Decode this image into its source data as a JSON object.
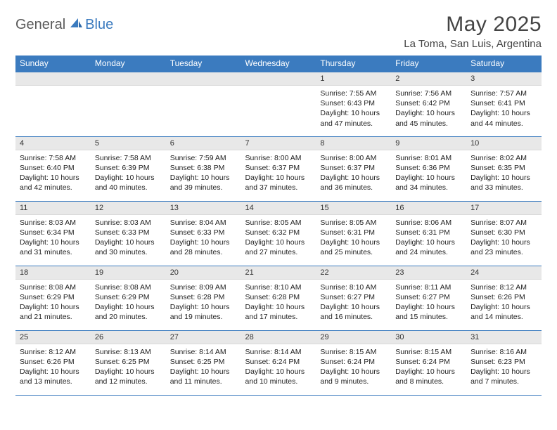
{
  "colors": {
    "accent": "#3b7bbf",
    "header_text": "#ffffff",
    "daynum_bg": "#e8e8e8",
    "text": "#222222",
    "logo_gray": "#5a5a5a"
  },
  "logo": {
    "part1": "General",
    "part2": "Blue"
  },
  "title": "May 2025",
  "location": "La Toma, San Luis, Argentina",
  "weekdays": [
    "Sunday",
    "Monday",
    "Tuesday",
    "Wednesday",
    "Thursday",
    "Friday",
    "Saturday"
  ],
  "weeks": [
    [
      null,
      null,
      null,
      null,
      {
        "n": "1",
        "sr": "7:55 AM",
        "ss": "6:43 PM",
        "dl": "10 hours and 47 minutes."
      },
      {
        "n": "2",
        "sr": "7:56 AM",
        "ss": "6:42 PM",
        "dl": "10 hours and 45 minutes."
      },
      {
        "n": "3",
        "sr": "7:57 AM",
        "ss": "6:41 PM",
        "dl": "10 hours and 44 minutes."
      }
    ],
    [
      {
        "n": "4",
        "sr": "7:58 AM",
        "ss": "6:40 PM",
        "dl": "10 hours and 42 minutes."
      },
      {
        "n": "5",
        "sr": "7:58 AM",
        "ss": "6:39 PM",
        "dl": "10 hours and 40 minutes."
      },
      {
        "n": "6",
        "sr": "7:59 AM",
        "ss": "6:38 PM",
        "dl": "10 hours and 39 minutes."
      },
      {
        "n": "7",
        "sr": "8:00 AM",
        "ss": "6:37 PM",
        "dl": "10 hours and 37 minutes."
      },
      {
        "n": "8",
        "sr": "8:00 AM",
        "ss": "6:37 PM",
        "dl": "10 hours and 36 minutes."
      },
      {
        "n": "9",
        "sr": "8:01 AM",
        "ss": "6:36 PM",
        "dl": "10 hours and 34 minutes."
      },
      {
        "n": "10",
        "sr": "8:02 AM",
        "ss": "6:35 PM",
        "dl": "10 hours and 33 minutes."
      }
    ],
    [
      {
        "n": "11",
        "sr": "8:03 AM",
        "ss": "6:34 PM",
        "dl": "10 hours and 31 minutes."
      },
      {
        "n": "12",
        "sr": "8:03 AM",
        "ss": "6:33 PM",
        "dl": "10 hours and 30 minutes."
      },
      {
        "n": "13",
        "sr": "8:04 AM",
        "ss": "6:33 PM",
        "dl": "10 hours and 28 minutes."
      },
      {
        "n": "14",
        "sr": "8:05 AM",
        "ss": "6:32 PM",
        "dl": "10 hours and 27 minutes."
      },
      {
        "n": "15",
        "sr": "8:05 AM",
        "ss": "6:31 PM",
        "dl": "10 hours and 25 minutes."
      },
      {
        "n": "16",
        "sr": "8:06 AM",
        "ss": "6:31 PM",
        "dl": "10 hours and 24 minutes."
      },
      {
        "n": "17",
        "sr": "8:07 AM",
        "ss": "6:30 PM",
        "dl": "10 hours and 23 minutes."
      }
    ],
    [
      {
        "n": "18",
        "sr": "8:08 AM",
        "ss": "6:29 PM",
        "dl": "10 hours and 21 minutes."
      },
      {
        "n": "19",
        "sr": "8:08 AM",
        "ss": "6:29 PM",
        "dl": "10 hours and 20 minutes."
      },
      {
        "n": "20",
        "sr": "8:09 AM",
        "ss": "6:28 PM",
        "dl": "10 hours and 19 minutes."
      },
      {
        "n": "21",
        "sr": "8:10 AM",
        "ss": "6:28 PM",
        "dl": "10 hours and 17 minutes."
      },
      {
        "n": "22",
        "sr": "8:10 AM",
        "ss": "6:27 PM",
        "dl": "10 hours and 16 minutes."
      },
      {
        "n": "23",
        "sr": "8:11 AM",
        "ss": "6:27 PM",
        "dl": "10 hours and 15 minutes."
      },
      {
        "n": "24",
        "sr": "8:12 AM",
        "ss": "6:26 PM",
        "dl": "10 hours and 14 minutes."
      }
    ],
    [
      {
        "n": "25",
        "sr": "8:12 AM",
        "ss": "6:26 PM",
        "dl": "10 hours and 13 minutes."
      },
      {
        "n": "26",
        "sr": "8:13 AM",
        "ss": "6:25 PM",
        "dl": "10 hours and 12 minutes."
      },
      {
        "n": "27",
        "sr": "8:14 AM",
        "ss": "6:25 PM",
        "dl": "10 hours and 11 minutes."
      },
      {
        "n": "28",
        "sr": "8:14 AM",
        "ss": "6:24 PM",
        "dl": "10 hours and 10 minutes."
      },
      {
        "n": "29",
        "sr": "8:15 AM",
        "ss": "6:24 PM",
        "dl": "10 hours and 9 minutes."
      },
      {
        "n": "30",
        "sr": "8:15 AM",
        "ss": "6:24 PM",
        "dl": "10 hours and 8 minutes."
      },
      {
        "n": "31",
        "sr": "8:16 AM",
        "ss": "6:23 PM",
        "dl": "10 hours and 7 minutes."
      }
    ]
  ],
  "labels": {
    "sunrise": "Sunrise: ",
    "sunset": "Sunset: ",
    "daylight": "Daylight: "
  }
}
